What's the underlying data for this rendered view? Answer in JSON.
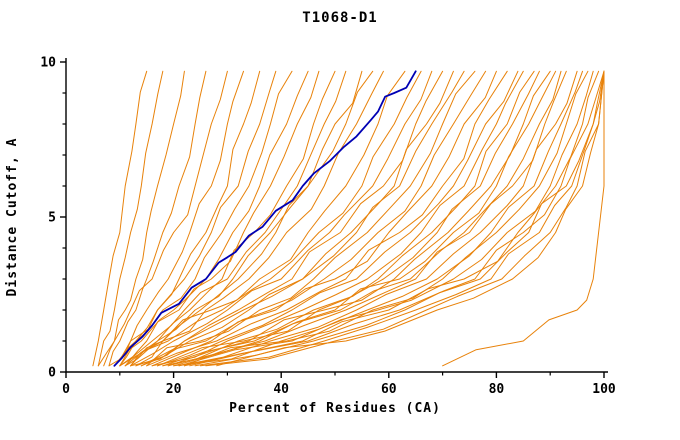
{
  "chart_data": {
    "type": "line",
    "title": "T1068-D1",
    "xlabel": "Percent of Residues (CA)",
    "ylabel": "Distance Cutoff, A",
    "xlim": [
      0,
      100
    ],
    "ylim": [
      0,
      10
    ],
    "x_ticks": [
      0,
      20,
      40,
      60,
      80,
      100
    ],
    "x_minor_ticks": [
      10,
      30,
      50,
      70,
      90
    ],
    "y_ticks": [
      0,
      5,
      10
    ],
    "y_minor_ticks": [
      1,
      2,
      3,
      4,
      6,
      7,
      8,
      9
    ],
    "grid": false,
    "legend_position": "none",
    "colors": {
      "models": "#e8820a",
      "highlight": "#0000b4",
      "axis": "#000000",
      "background": "#ffffff"
    },
    "y_levels": [
      0.2,
      1.0,
      2.0,
      3.0,
      4.5,
      6.0,
      8.0,
      9.7
    ],
    "model_curves_x_at_levels": [
      [
        5,
        6,
        7,
        8,
        10,
        11,
        13,
        15
      ],
      [
        6,
        7,
        9,
        10,
        12,
        14,
        16,
        18
      ],
      [
        7,
        9,
        11,
        13,
        15,
        17,
        20,
        22
      ],
      [
        8,
        10,
        13,
        15,
        18,
        21,
        24,
        26
      ],
      [
        6,
        9,
        12,
        16,
        20,
        24,
        27,
        30
      ],
      [
        9,
        12,
        15,
        19,
        23,
        27,
        30,
        33
      ],
      [
        10,
        13,
        17,
        21,
        26,
        30,
        33,
        36
      ],
      [
        8,
        12,
        17,
        22,
        27,
        32,
        36,
        39
      ],
      [
        9,
        13,
        18,
        24,
        29,
        34,
        38,
        42
      ],
      [
        10,
        14,
        20,
        26,
        31,
        36,
        41,
        45
      ],
      [
        11,
        15,
        21,
        27,
        33,
        38,
        43,
        47
      ],
      [
        12,
        17,
        23,
        29,
        35,
        41,
        46,
        50
      ],
      [
        10,
        16,
        22,
        30,
        37,
        43,
        48,
        52
      ],
      [
        13,
        18,
        25,
        32,
        39,
        45,
        50,
        55
      ],
      [
        11,
        17,
        24,
        31,
        38,
        45,
        52,
        57
      ],
      [
        12,
        18,
        26,
        34,
        41,
        48,
        54,
        59
      ],
      [
        10,
        18,
        27,
        36,
        45,
        52,
        58,
        63
      ],
      [
        11,
        19,
        29,
        38,
        47,
        55,
        61,
        66
      ],
      [
        12,
        20,
        30,
        40,
        49,
        57,
        63,
        68
      ],
      [
        13,
        22,
        32,
        42,
        51,
        59,
        65,
        70
      ],
      [
        14,
        23,
        34,
        44,
        53,
        61,
        67,
        72
      ],
      [
        12,
        22,
        33,
        44,
        54,
        62,
        68,
        74
      ],
      [
        15,
        25,
        36,
        46,
        56,
        64,
        70,
        76
      ],
      [
        14,
        26,
        38,
        48,
        58,
        66,
        72,
        78
      ],
      [
        16,
        27,
        39,
        50,
        60,
        68,
        74,
        80
      ],
      [
        15,
        28,
        41,
        52,
        62,
        70,
        76,
        82
      ],
      [
        17,
        29,
        42,
        54,
        64,
        72,
        78,
        84
      ],
      [
        16,
        30,
        44,
        56,
        66,
        74,
        80,
        85
      ],
      [
        18,
        32,
        46,
        58,
        68,
        76,
        82,
        87
      ],
      [
        17,
        33,
        47,
        59,
        69,
        77,
        83,
        88
      ],
      [
        19,
        34,
        48,
        61,
        71,
        79,
        85,
        90
      ],
      [
        18,
        35,
        50,
        62,
        72,
        80,
        86,
        91
      ],
      [
        20,
        36,
        51,
        64,
        74,
        82,
        88,
        92
      ],
      [
        19,
        37,
        52,
        65,
        75,
        83,
        89,
        93
      ],
      [
        21,
        38,
        54,
        67,
        77,
        85,
        91,
        95
      ],
      [
        20,
        40,
        56,
        69,
        79,
        87,
        92,
        96
      ],
      [
        22,
        41,
        57,
        70,
        80,
        88,
        93,
        97
      ],
      [
        21,
        42,
        58,
        72,
        82,
        90,
        95,
        98
      ],
      [
        23,
        44,
        60,
        74,
        84,
        91,
        96,
        99
      ],
      [
        22,
        45,
        62,
        76,
        85,
        92,
        97,
        100
      ],
      [
        24,
        46,
        63,
        77,
        86,
        93,
        98,
        100
      ],
      [
        25,
        48,
        65,
        79,
        88,
        94,
        98,
        100
      ],
      [
        26,
        50,
        67,
        81,
        90,
        95,
        99,
        100
      ],
      [
        28,
        52,
        69,
        83,
        91,
        96,
        99,
        100
      ],
      [
        70,
        85,
        95,
        98,
        99,
        100,
        100,
        100
      ]
    ],
    "highlight_curve": {
      "x": [
        9,
        12,
        16,
        21,
        26,
        30,
        34,
        39,
        44,
        49,
        54,
        58,
        61,
        65
      ],
      "y": [
        0.2,
        0.8,
        1.5,
        2.2,
        3.0,
        3.7,
        4.4,
        5.2,
        6.0,
        6.8,
        7.6,
        8.4,
        9.0,
        9.7
      ]
    }
  }
}
